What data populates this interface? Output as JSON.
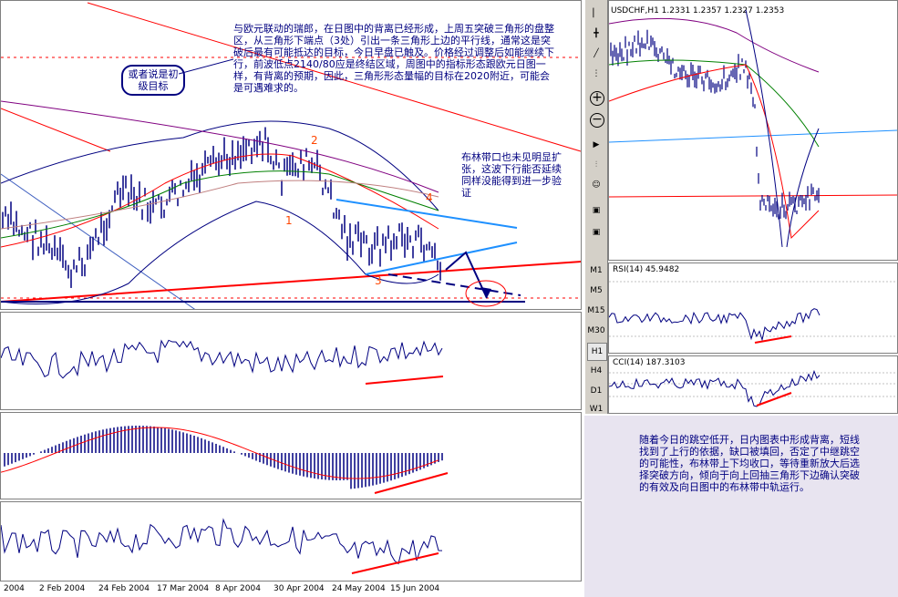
{
  "main_chart": {
    "annotation_top": "与欧元联动的瑞郎，在日图中的背离已经形成，上周五突破三角形的盘整区，从三角形下端点（3处）引出一条三角形上边的平行线，通常这是突破后最有可能抵达的目标，今日早盘已触及。价格经过调整后如能继续下行，前波低点2140/80应是终结区域，周图中的指标形态跟欧元日图一样，有背离的预期，因此，三角形形态量幅的目标在2020附近，可能会是可遇难求的。",
    "callout": "或者说是初级目标",
    "annotation_right": "布林带口也未见明显扩张，这波下行能否延续同样没能得到进一步验证",
    "wave_labels": [
      "1",
      "2",
      "3",
      "4"
    ],
    "x_labels": [
      "2004",
      "2 Feb 2004",
      "24 Feb 2004",
      "17 Mar 2004",
      "8 Apr 2004",
      "30 Apr 2004",
      "24 May 2004",
      "15 Jun 2004"
    ]
  },
  "right_chart": {
    "title": "USDCHF,H1  1.2331 1.2357 1.2327 1.2353",
    "rsi_label": "RSI(14)  45.9482",
    "cci_label": "CCI(14)  187.3103",
    "annotation": "随着今日的跳空低开，日内图表中形成背离，短线找到了上行的依据，缺口被填回，否定了中继跳空的可能性，布林带上下均收口，等待重新放大后选择突破方向，倾向于向上回抽三角形下边确认突破的有效及向日图中的布林带中轨运行。"
  },
  "toolbar": {
    "timeframes": [
      "M1",
      "M5",
      "M15",
      "M30",
      "H1",
      "H4",
      "D1",
      "W1"
    ],
    "zoom_in": "+",
    "zoom_out": "−"
  },
  "chart_data": [
    {
      "type": "line",
      "title": "",
      "x": [
        "2004",
        "2 Feb 2004",
        "24 Feb 2004",
        "17 Mar 2004",
        "8 Apr 2004",
        "30 Apr 2004",
        "24 May 2004",
        "15 Jun 2004"
      ],
      "series": [
        {
          "values": [
            0.47,
            0.38,
            0.42,
            0.3,
            0.24,
            0.28,
            0.55,
            0.62
          ]
        }
      ],
      "colors": {
        "price": "#000080",
        "bollinger": "#000080",
        "ma_red": "#ff0000",
        "ma_green": "#008000",
        "ma_purple": "#800080",
        "trend": "#ff0000",
        "triangle": "#1e90ff"
      }
    },
    {
      "type": "line",
      "title": "USDCHF,H1",
      "series": [
        {
          "name": "RSI(14)",
          "values": [
            45.9482
          ]
        },
        {
          "name": "CCI(14)",
          "values": [
            187.3103
          ]
        }
      ]
    }
  ]
}
